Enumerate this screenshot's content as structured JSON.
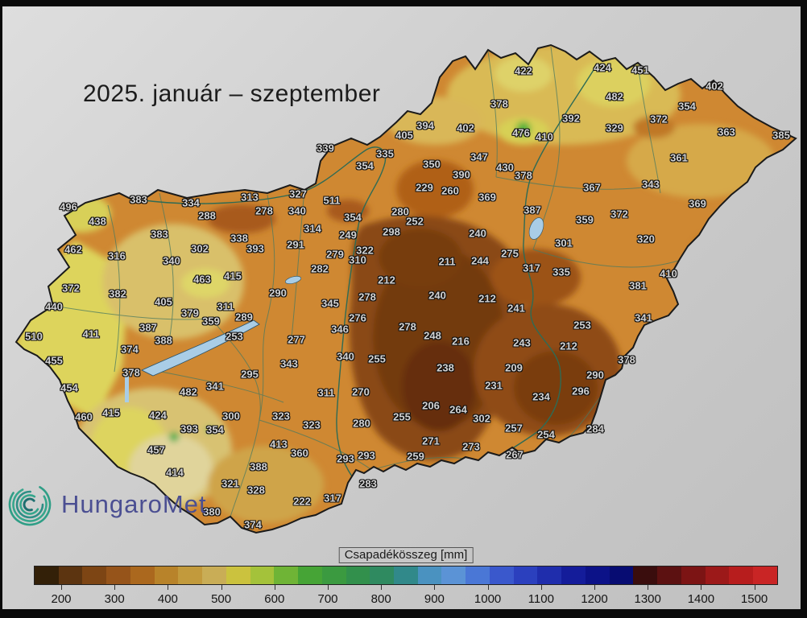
{
  "title": "2025. január – szeptember",
  "logo": {
    "text": "HungaroMet"
  },
  "legend": {
    "title": "Csapadékösszeg [mm]",
    "ticks": [
      "200",
      "300",
      "400",
      "500",
      "600",
      "700",
      "800",
      "900",
      "1000",
      "1100",
      "1200",
      "1300",
      "1400",
      "1500"
    ],
    "segments": [
      "#332008",
      "#5c3410",
      "#7d4514",
      "#96541a",
      "#ab681e",
      "#b8832a",
      "#c29a3c",
      "#c9ad56",
      "#cbc23e",
      "#a4c23a",
      "#6fb436",
      "#46a436",
      "#3b9a40",
      "#32904c",
      "#2f8a60",
      "#31898a",
      "#4a92c0",
      "#5b93d6",
      "#4a77d6",
      "#3a58cc",
      "#2b40be",
      "#1f2dac",
      "#141c9a",
      "#0c1288",
      "#070c72",
      "#3a0d0d",
      "#5c1111",
      "#7c1414",
      "#9c1919",
      "#b71d1d",
      "#c92525"
    ],
    "colors_note": "brown-to-yellow-to-green-to-blue-to-darkred scale"
  },
  "map": {
    "region_colors": {
      "base_orange": "#cf8832",
      "dark_brown_core": "#6d350d",
      "dark_brown": "#7c3f10",
      "brown": "#8f4c16",
      "light_brown": "#a85a1a",
      "tan": "#d9bd68",
      "yellow": "#ddd45c",
      "green_spot": "#54b23c",
      "lake_blue": "#a9cde6",
      "border_dark": "#1a1a1a",
      "river_green": "#2e6b55"
    },
    "stations": [
      [
        "422",
        650,
        88
      ],
      [
        "424",
        748,
        84
      ],
      [
        "451",
        795,
        87
      ],
      [
        "402",
        887,
        107
      ],
      [
        "378",
        620,
        129
      ],
      [
        "482",
        763,
        120
      ],
      [
        "392",
        709,
        147
      ],
      [
        "354",
        853,
        132
      ],
      [
        "372",
        818,
        148
      ],
      [
        "329",
        763,
        159
      ],
      [
        "363",
        902,
        164
      ],
      [
        "385",
        970,
        168
      ],
      [
        "394",
        528,
        156
      ],
      [
        "402",
        578,
        159
      ],
      [
        "405",
        502,
        168
      ],
      [
        "476",
        647,
        165
      ],
      [
        "410",
        676,
        170
      ],
      [
        "347",
        595,
        195
      ],
      [
        "361",
        843,
        196
      ],
      [
        "339",
        404,
        184
      ],
      [
        "335",
        478,
        191
      ],
      [
        "354",
        453,
        206
      ],
      [
        "350",
        536,
        204
      ],
      [
        "390",
        573,
        217
      ],
      [
        "430",
        627,
        208
      ],
      [
        "378",
        650,
        218
      ],
      [
        "343",
        808,
        229
      ],
      [
        "369",
        866,
        253
      ],
      [
        "229",
        527,
        233
      ],
      [
        "260",
        559,
        237
      ],
      [
        "369",
        605,
        245
      ],
      [
        "367",
        735,
        233
      ],
      [
        "387",
        661,
        261
      ],
      [
        "372",
        769,
        266
      ],
      [
        "359",
        726,
        273
      ],
      [
        "301",
        700,
        302
      ],
      [
        "320",
        802,
        297
      ],
      [
        "383",
        172,
        248
      ],
      [
        "334",
        237,
        252
      ],
      [
        "313",
        310,
        245
      ],
      [
        "327",
        370,
        241
      ],
      [
        "496",
        85,
        257
      ],
      [
        "438",
        121,
        275
      ],
      [
        "288",
        257,
        268
      ],
      [
        "278",
        328,
        262
      ],
      [
        "340",
        369,
        262
      ],
      [
        "511",
        412,
        249
      ],
      [
        "383",
        198,
        291
      ],
      [
        "338",
        297,
        296
      ],
      [
        "314",
        388,
        284
      ],
      [
        "291",
        367,
        304
      ],
      [
        "462",
        91,
        310
      ],
      [
        "302",
        248,
        309
      ],
      [
        "393",
        317,
        309
      ],
      [
        "316",
        145,
        318
      ],
      [
        "340",
        213,
        324
      ],
      [
        "463",
        251,
        347
      ],
      [
        "415",
        289,
        343
      ],
      [
        "372",
        88,
        358
      ],
      [
        "382",
        146,
        365
      ],
      [
        "290",
        345,
        364
      ],
      [
        "405",
        203,
        375
      ],
      [
        "311",
        280,
        381
      ],
      [
        "440",
        67,
        381
      ],
      [
        "510",
        42,
        418
      ],
      [
        "411",
        113,
        415
      ],
      [
        "387",
        184,
        407
      ],
      [
        "388",
        203,
        423
      ],
      [
        "374",
        161,
        434
      ],
      [
        "455",
        67,
        448
      ],
      [
        "378",
        163,
        463
      ],
      [
        "454",
        86,
        482
      ],
      [
        "460",
        104,
        518
      ],
      [
        "415",
        138,
        513
      ],
      [
        "424",
        196,
        516
      ],
      [
        "379",
        236,
        389
      ],
      [
        "359",
        262,
        399
      ],
      [
        "289",
        303,
        394
      ],
      [
        "253",
        291,
        418
      ],
      [
        "295",
        310,
        465
      ],
      [
        "341",
        267,
        480
      ],
      [
        "482",
        234,
        487
      ],
      [
        "300",
        287,
        517
      ],
      [
        "393",
        235,
        533
      ],
      [
        "354",
        267,
        534
      ],
      [
        "323",
        349,
        517
      ],
      [
        "354",
        438,
        270
      ],
      [
        "249",
        432,
        292
      ],
      [
        "298",
        486,
        288
      ],
      [
        "280",
        497,
        263
      ],
      [
        "252",
        515,
        275
      ],
      [
        "322",
        453,
        311
      ],
      [
        "279",
        416,
        316
      ],
      [
        "310",
        444,
        323
      ],
      [
        "282",
        397,
        334
      ],
      [
        "211",
        555,
        325
      ],
      [
        "244",
        596,
        324
      ],
      [
        "275",
        633,
        315
      ],
      [
        "240",
        593,
        290
      ],
      [
        "317",
        660,
        333
      ],
      [
        "335",
        697,
        338
      ],
      [
        "212",
        480,
        348
      ],
      [
        "278",
        456,
        369
      ],
      [
        "345",
        410,
        377
      ],
      [
        "240",
        543,
        367
      ],
      [
        "212",
        605,
        371
      ],
      [
        "241",
        641,
        383
      ],
      [
        "276",
        444,
        395
      ],
      [
        "346",
        422,
        409
      ],
      [
        "277",
        368,
        422
      ],
      [
        "343",
        359,
        452
      ],
      [
        "278",
        506,
        406
      ],
      [
        "248",
        537,
        417
      ],
      [
        "216",
        572,
        424
      ],
      [
        "243",
        648,
        426
      ],
      [
        "212",
        706,
        430
      ],
      [
        "253",
        723,
        404
      ],
      [
        "341",
        799,
        395
      ],
      [
        "381",
        792,
        355
      ],
      [
        "410",
        830,
        340
      ],
      [
        "378",
        778,
        447
      ],
      [
        "209",
        638,
        457
      ],
      [
        "290",
        739,
        466
      ],
      [
        "296",
        721,
        486
      ],
      [
        "234",
        672,
        493
      ],
      [
        "231",
        613,
        479
      ],
      [
        "238",
        553,
        457
      ],
      [
        "340",
        429,
        443
      ],
      [
        "255",
        468,
        446
      ],
      [
        "311",
        405,
        488
      ],
      [
        "270",
        448,
        487
      ],
      [
        "280",
        449,
        526
      ],
      [
        "255",
        499,
        518
      ],
      [
        "206",
        535,
        504
      ],
      [
        "264",
        569,
        509
      ],
      [
        "302",
        598,
        520
      ],
      [
        "323",
        387,
        528
      ],
      [
        "360",
        372,
        563
      ],
      [
        "413",
        346,
        552
      ],
      [
        "457",
        194,
        559
      ],
      [
        "414",
        217,
        587
      ],
      [
        "388",
        321,
        580
      ],
      [
        "321",
        286,
        601
      ],
      [
        "328",
        318,
        609
      ],
      [
        "380",
        263,
        636
      ],
      [
        "374",
        314,
        652
      ],
      [
        "222",
        375,
        623
      ],
      [
        "317",
        413,
        619
      ],
      [
        "293",
        429,
        570
      ],
      [
        "293",
        455,
        566
      ],
      [
        "283",
        457,
        601
      ],
      [
        "259",
        516,
        567
      ],
      [
        "271",
        535,
        548
      ],
      [
        "273",
        585,
        555
      ],
      [
        "267",
        639,
        565
      ],
      [
        "257",
        638,
        532
      ],
      [
        "254",
        678,
        540
      ],
      [
        "284",
        739,
        533
      ]
    ]
  }
}
